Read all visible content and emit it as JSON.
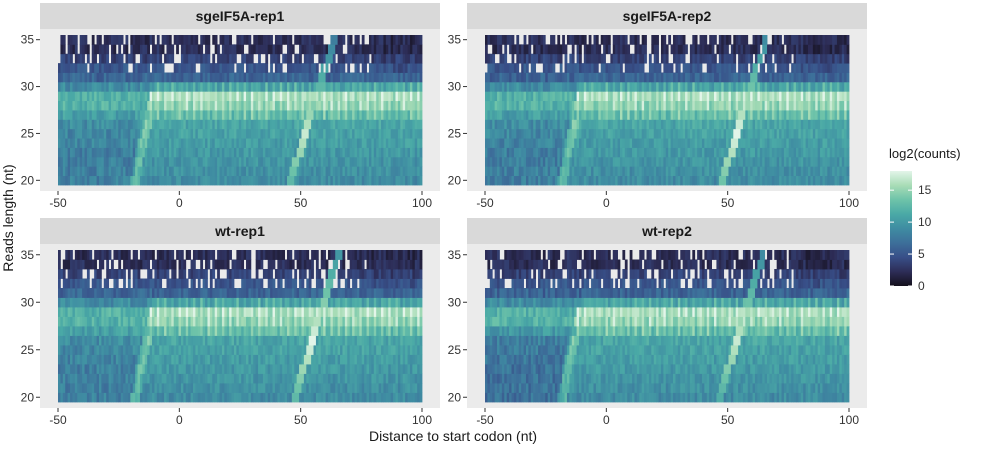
{
  "chart_data": {
    "type": "heatmap",
    "title": "",
    "xlabel": "Distance to start codon (nt)",
    "ylabel": "Reads length (nt)",
    "x_range": [
      -50,
      100
    ],
    "y_range": [
      20,
      35
    ],
    "x_ticks": [
      -50,
      0,
      50,
      100
    ],
    "y_ticks": [
      20,
      25,
      30,
      35
    ],
    "value_label": "log2(counts)",
    "value_range": [
      0,
      18
    ],
    "colorbar_ticks": [
      0,
      5,
      10,
      15
    ],
    "colormap": [
      "#14101c",
      "#2d2d57",
      "#384f88",
      "#3d6f9a",
      "#3f8ca2",
      "#4aa9a6",
      "#6ec3a9",
      "#a8dcb6",
      "#e3f5e9"
    ],
    "panels": [
      {
        "name": "sgeIF5A-rep1",
        "summary_log2_by_length": [
          {
            "length": 20,
            "before_start": 8,
            "after_start": 9
          },
          {
            "length": 23,
            "before_start": 8,
            "after_start": 10
          },
          {
            "length": 26,
            "before_start": 9,
            "after_start": 11
          },
          {
            "length": 28,
            "before_start": 12,
            "after_start": 15
          },
          {
            "length": 29,
            "before_start": 12,
            "after_start": 16
          },
          {
            "length": 31,
            "before_start": 6,
            "after_start": 6
          },
          {
            "length": 34,
            "before_start": 2,
            "after_start": 2
          }
        ],
        "highlights": [
          {
            "x": 52,
            "length": 25,
            "log2": 17
          }
        ]
      },
      {
        "name": "sgeIF5A-rep2",
        "summary_log2_by_length": [
          {
            "length": 20,
            "before_start": 8,
            "after_start": 9
          },
          {
            "length": 23,
            "before_start": 8,
            "after_start": 10
          },
          {
            "length": 26,
            "before_start": 9,
            "after_start": 11
          },
          {
            "length": 28,
            "before_start": 12,
            "after_start": 15
          },
          {
            "length": 29,
            "before_start": 12,
            "after_start": 16
          },
          {
            "length": 31,
            "before_start": 6,
            "after_start": 6
          },
          {
            "length": 34,
            "before_start": 2,
            "after_start": 2
          }
        ],
        "highlights": [
          {
            "x": 54,
            "length": 25,
            "log2": 18
          }
        ]
      },
      {
        "name": "wt-rep1",
        "summary_log2_by_length": [
          {
            "length": 20,
            "before_start": 8,
            "after_start": 9
          },
          {
            "length": 23,
            "before_start": 8,
            "after_start": 10
          },
          {
            "length": 26,
            "before_start": 9,
            "after_start": 11
          },
          {
            "length": 28,
            "before_start": 12,
            "after_start": 15
          },
          {
            "length": 29,
            "before_start": 12,
            "after_start": 16
          },
          {
            "length": 31,
            "before_start": 6,
            "after_start": 6
          },
          {
            "length": 34,
            "before_start": 2,
            "after_start": 2
          }
        ],
        "highlights": [
          {
            "x": 55,
            "length": 26,
            "log2": 18
          }
        ]
      },
      {
        "name": "wt-rep2",
        "summary_log2_by_length": [
          {
            "length": 20,
            "before_start": 7,
            "after_start": 9
          },
          {
            "length": 23,
            "before_start": 7,
            "after_start": 10
          },
          {
            "length": 26,
            "before_start": 8,
            "after_start": 11
          },
          {
            "length": 28,
            "before_start": 12,
            "after_start": 15
          },
          {
            "length": 29,
            "before_start": 12,
            "after_start": 16
          },
          {
            "length": 31,
            "before_start": 6,
            "after_start": 6
          },
          {
            "length": 34,
            "before_start": 2,
            "after_start": 2
          }
        ],
        "highlights": [
          {
            "x": 54,
            "length": 26,
            "log2": 17
          }
        ]
      }
    ]
  }
}
